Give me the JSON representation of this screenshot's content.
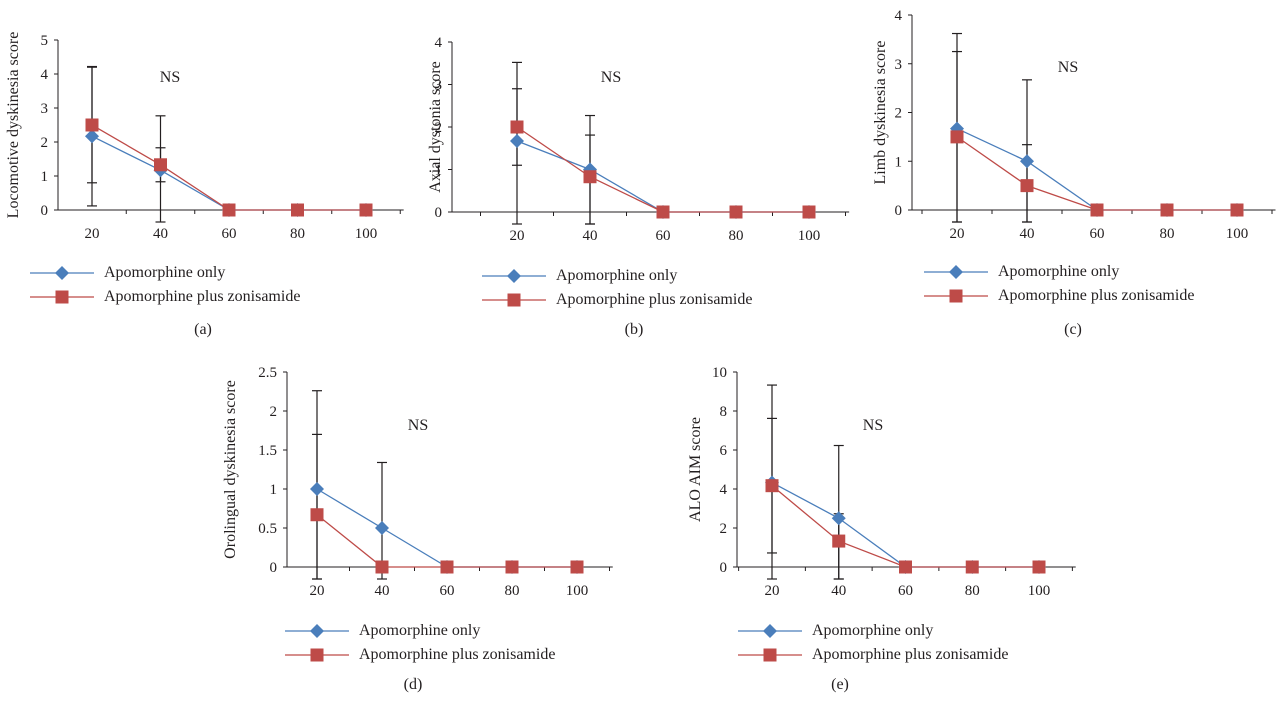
{
  "legend": {
    "series_a": "Apomorphine only",
    "series_b": "Apomorphine plus zonisamide"
  },
  "colors": {
    "series_a": "#4a7ebb",
    "series_b": "#be4b48",
    "axis": "#231f20"
  },
  "chart_data": [
    {
      "type": "line",
      "caption": "(a)",
      "annotation": "NS",
      "ylabel": "Locomotive dyskinesia score",
      "x": [
        20,
        40,
        60,
        80,
        100
      ],
      "xticks": [
        "20",
        "40",
        "60",
        "80",
        "100"
      ],
      "yticks": [
        "0",
        "1",
        "2",
        "3",
        "4",
        "5"
      ],
      "ylim": [
        0,
        5
      ],
      "series": [
        {
          "name": "Apomorphine only",
          "values": [
            2.17,
            1.17,
            0,
            0,
            0
          ],
          "error": [
            2.05,
            1.6,
            0,
            0,
            0
          ]
        },
        {
          "name": "Apomorphine plus zonisamide",
          "values": [
            2.5,
            1.33,
            0,
            0,
            0
          ],
          "error": [
            1.7,
            0.5,
            0,
            0,
            0
          ]
        }
      ]
    },
    {
      "type": "line",
      "caption": "(b)",
      "annotation": "NS",
      "ylabel": "Axial dystonia score",
      "x": [
        20,
        40,
        60,
        80,
        100
      ],
      "xticks": [
        "20",
        "40",
        "60",
        "80",
        "100"
      ],
      "yticks": [
        "0",
        "1",
        "2",
        "3",
        "4"
      ],
      "ylim": [
        0,
        4
      ],
      "series": [
        {
          "name": "Apomorphine only",
          "values": [
            1.67,
            1.0,
            0,
            0,
            0
          ],
          "error": [
            1.85,
            1.27,
            0,
            0,
            0
          ]
        },
        {
          "name": "Apomorphine plus zonisamide",
          "values": [
            2.0,
            0.83,
            0,
            0,
            0
          ],
          "error": [
            0.9,
            0.98,
            0,
            0,
            0
          ]
        }
      ]
    },
    {
      "type": "line",
      "caption": "(c)",
      "annotation": "NS",
      "ylabel": "Limb dyskinesia score",
      "x": [
        20,
        40,
        60,
        80,
        100
      ],
      "xticks": [
        "20",
        "40",
        "60",
        "80",
        "100"
      ],
      "yticks": [
        "0",
        "1",
        "2",
        "3",
        "4"
      ],
      "ylim": [
        0,
        4
      ],
      "series": [
        {
          "name": "Apomorphine only",
          "values": [
            1.67,
            1.0,
            0,
            0,
            0
          ],
          "error": [
            1.95,
            1.67,
            0,
            0,
            0
          ]
        },
        {
          "name": "Apomorphine plus zonisamide",
          "values": [
            1.5,
            0.5,
            0,
            0,
            0
          ],
          "error": [
            1.75,
            0.84,
            0,
            0,
            0
          ]
        }
      ]
    },
    {
      "type": "line",
      "caption": "(d)",
      "annotation": "NS",
      "ylabel": "Orolingual dyskinesia score",
      "x": [
        20,
        40,
        60,
        80,
        100
      ],
      "xticks": [
        "20",
        "40",
        "60",
        "80",
        "100"
      ],
      "yticks": [
        "0",
        "0.5",
        "1",
        "1.5",
        "2",
        "2.5"
      ],
      "ylim": [
        0,
        2.5
      ],
      "series": [
        {
          "name": "Apomorphine only",
          "values": [
            1.0,
            0.5,
            0,
            0,
            0
          ],
          "error": [
            1.26,
            0.84,
            0,
            0,
            0
          ]
        },
        {
          "name": "Apomorphine plus zonisamide",
          "values": [
            0.67,
            0,
            0,
            0,
            0
          ],
          "error": [
            1.03,
            0,
            0,
            0,
            0
          ]
        }
      ]
    },
    {
      "type": "line",
      "caption": "(e)",
      "annotation": "NS",
      "ylabel": "ALO AIM score",
      "x": [
        20,
        40,
        60,
        80,
        100
      ],
      "xticks": [
        "20",
        "40",
        "60",
        "80",
        "100"
      ],
      "yticks": [
        "0",
        "2",
        "4",
        "6",
        "8",
        "10"
      ],
      "ylim": [
        0,
        10
      ],
      "series": [
        {
          "name": "Apomorphine only",
          "values": [
            4.33,
            2.5,
            0,
            0,
            0
          ],
          "error": [
            5.0,
            3.73,
            0,
            0,
            0
          ]
        },
        {
          "name": "Apomorphine plus zonisamide",
          "values": [
            4.17,
            1.33,
            0,
            0,
            0
          ],
          "error": [
            3.45,
            1.4,
            0,
            0,
            0
          ]
        }
      ]
    }
  ]
}
